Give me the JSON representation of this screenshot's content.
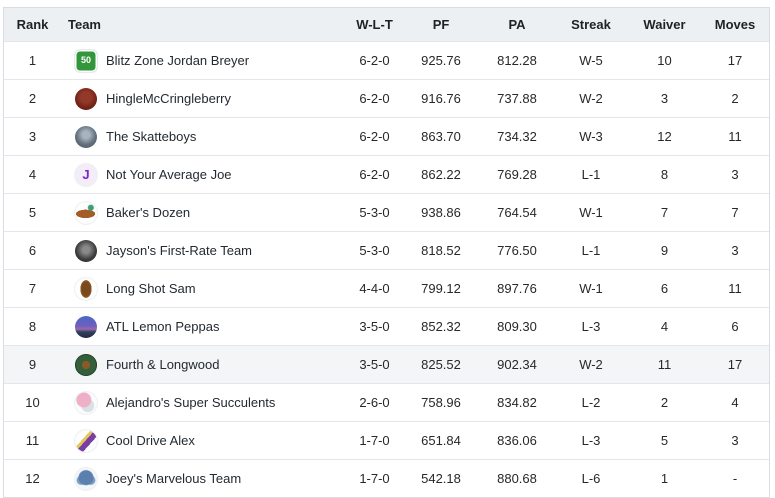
{
  "colors": {
    "header_bg": "#edf0f3",
    "header_text": "#1d2228",
    "body_text": "#26282b",
    "border": "#d9dde2",
    "row_divider": "#e3e6ea",
    "highlight_row_bg": "#f4f5f6"
  },
  "table": {
    "columns": [
      {
        "key": "rank",
        "label": "Rank"
      },
      {
        "key": "team",
        "label": "Team"
      },
      {
        "key": "wlt",
        "label": "W-L-T"
      },
      {
        "key": "pf",
        "label": "PF"
      },
      {
        "key": "pa",
        "label": "PA"
      },
      {
        "key": "streak",
        "label": "Streak"
      },
      {
        "key": "waiver",
        "label": "Waiver"
      },
      {
        "key": "moves",
        "label": "Moves"
      }
    ],
    "rows": [
      {
        "rank": "1",
        "team": "Blitz Zone Jordan Breyer",
        "wlt": "6-2-0",
        "pf": "925.76",
        "pa": "812.28",
        "streak": "W-5",
        "waiver": "10",
        "moves": "17",
        "highlighted": false,
        "avatar": {
          "name": "team-avatar-fifty-yard-marker-icon",
          "glyph": "50",
          "css": "background:#33953c;border-radius:5px;color:#fff;font-size:9px;font-weight:800;box-shadow:inset 0 0 0 1.5px #ffffff,0 0 0 1px #e8ebee"
        }
      },
      {
        "rank": "2",
        "team": "HingleMcCringleberry",
        "wlt": "6-2-0",
        "pf": "916.76",
        "pa": "737.88",
        "streak": "W-2",
        "waiver": "3",
        "moves": "2",
        "highlighted": false,
        "avatar": {
          "name": "team-avatar-red-portrait-icon",
          "glyph": "",
          "css": "background:radial-gradient(circle at 50% 42%,#93392a 0 30%,#6e1d12 70%,#571109 100%);border-radius:50%"
        }
      },
      {
        "rank": "3",
        "team": "The Skatteboys",
        "wlt": "6-2-0",
        "pf": "863.70",
        "pa": "734.32",
        "streak": "W-3",
        "waiver": "12",
        "moves": "11",
        "highlighted": false,
        "avatar": {
          "name": "team-avatar-gray-photo-icon",
          "glyph": "",
          "css": "background:radial-gradient(circle at 50% 40%,#a8b4c0 0 20%,#66727e 55%,#454f5b 100%);border-radius:50%"
        }
      },
      {
        "rank": "4",
        "team": "Not Your Average Joe",
        "wlt": "6-2-0",
        "pf": "862.22",
        "pa": "769.28",
        "streak": "L-1",
        "waiver": "8",
        "moves": "3",
        "highlighted": false,
        "avatar": {
          "name": "team-avatar-purple-j-icon",
          "glyph": "J",
          "css": "background:#f2edf8;border-radius:50%;color:#8223c9;font-size:13px;font-weight:800;box-shadow:0 0 0 1px #eef0f2"
        }
      },
      {
        "rank": "5",
        "team": "Baker's Dozen",
        "wlt": "5-3-0",
        "pf": "938.86",
        "pa": "764.54",
        "streak": "W-1",
        "waiver": "7",
        "moves": "7",
        "highlighted": false,
        "avatar": {
          "name": "team-avatar-roasted-carrot-icon",
          "glyph": "",
          "css": "background:radial-gradient(circle at 72% 26%,#3f9e71 0 2.5px,rgba(0,0,0,0) 3.5px),radial-gradient(46% 20% at 48% 54%,#a35c28 94%,rgba(0,0,0,0) 96%),#fdfdfd;border-radius:50%;box-shadow:0 0 0 1px #eef0f2"
        }
      },
      {
        "rank": "6",
        "team": "Jayson's First-Rate Team",
        "wlt": "5-3-0",
        "pf": "818.52",
        "pa": "776.50",
        "streak": "L-1",
        "waiver": "9",
        "moves": "3",
        "highlighted": false,
        "avatar": {
          "name": "team-avatar-dark-rose-icon",
          "glyph": "",
          "css": "background:radial-gradient(circle at 50% 44%,#8a8a8a 0 20%,#3c3c3c 60%,#1c1c1c 100%);border-radius:50%"
        }
      },
      {
        "rank": "7",
        "team": "Long Shot Sam",
        "wlt": "4-4-0",
        "pf": "799.12",
        "pa": "897.76",
        "streak": "W-1",
        "waiver": "6",
        "moves": "11",
        "highlighted": false,
        "avatar": {
          "name": "team-avatar-football-icon",
          "glyph": "",
          "css": "background:radial-gradient(27% 42% at 50% 50%,#7a4a1f 0 70%,#99591e 94%,rgba(0,0,0,0) 97%),#fdfefe;border-radius:50%;box-shadow:0 0 0 1px #eef0f2"
        }
      },
      {
        "rank": "8",
        "team": "ATL Lemon Peppas",
        "wlt": "3-5-0",
        "pf": "852.32",
        "pa": "809.30",
        "streak": "L-3",
        "waiver": "4",
        "moves": "6",
        "highlighted": false,
        "avatar": {
          "name": "team-avatar-city-skyline-icon",
          "glyph": "",
          "css": "background:linear-gradient(180deg,#4a69c4 0%,#6f5fc0 45%,#9a6aa8 60%,#30405e 72%,#1d2a42 100%);border-radius:50%"
        }
      },
      {
        "rank": "9",
        "team": "Fourth & Longwood",
        "wlt": "3-5-0",
        "pf": "825.52",
        "pa": "902.34",
        "streak": "W-2",
        "waiver": "11",
        "moves": "17",
        "highlighted": true,
        "avatar": {
          "name": "team-avatar-green-football-crest-icon",
          "glyph": "",
          "css": "background:radial-gradient(circle at 50% 50%,#8a5a26 0 26%,#355f3b 27% 100%);border-radius:50%;box-shadow:inset 0 0 0 1px #24452b"
        }
      },
      {
        "rank": "10",
        "team": "Alejandro's Super Succulents",
        "wlt": "2-6-0",
        "pf": "758.96",
        "pa": "834.82",
        "streak": "L-2",
        "waiver": "2",
        "moves": "4",
        "highlighted": false,
        "avatar": {
          "name": "team-avatar-unicorn-icon",
          "glyph": "",
          "css": "background:radial-gradient(circle at 40% 36%,#efafc6 0 7px,rgba(0,0,0,0) 8px),radial-gradient(circle at 58% 62%,#d9e0e6 0 6px,rgba(0,0,0,0) 7px),#fbfcfd;border-radius:50%;box-shadow:0 0 0 1px #eef0f2"
        }
      },
      {
        "rank": "11",
        "team": "Cool Drive Alex",
        "wlt": "1-7-0",
        "pf": "651.84",
        "pa": "836.06",
        "streak": "L-3",
        "waiver": "5",
        "moves": "3",
        "highlighted": false,
        "avatar": {
          "name": "team-avatar-purple-sneaker-icon",
          "glyph": "",
          "css": "background:linear-gradient(132deg,rgba(0,0,0,0) 0 38%,#e3c65c 38% 48%,#7a3fa5 48% 66%,rgba(0,0,0,0) 66%),#fdfdfe;border-radius:50%;box-shadow:0 0 0 1px #eef0f2"
        }
      },
      {
        "rank": "12",
        "team": "Joey's Marvelous Team",
        "wlt": "1-7-0",
        "pf": "542.18",
        "pa": "880.68",
        "streak": "L-6",
        "waiver": "1",
        "moves": "-",
        "highlighted": false,
        "avatar": {
          "name": "team-avatar-shark-icon",
          "glyph": "",
          "css": "background:radial-gradient(circle at 50% 44%,#5b7fae 0 7px,rgba(0,0,0,0) 8px),radial-gradient(circle at 28% 56%,#7f9dc4 0 4px,rgba(0,0,0,0) 5px),radial-gradient(circle at 72% 56%,#7f9dc4 0 4px,rgba(0,0,0,0) 5px),#f2f6f9;border-radius:50%;box-shadow:0 0 0 1px #eef0f2"
        }
      }
    ]
  }
}
